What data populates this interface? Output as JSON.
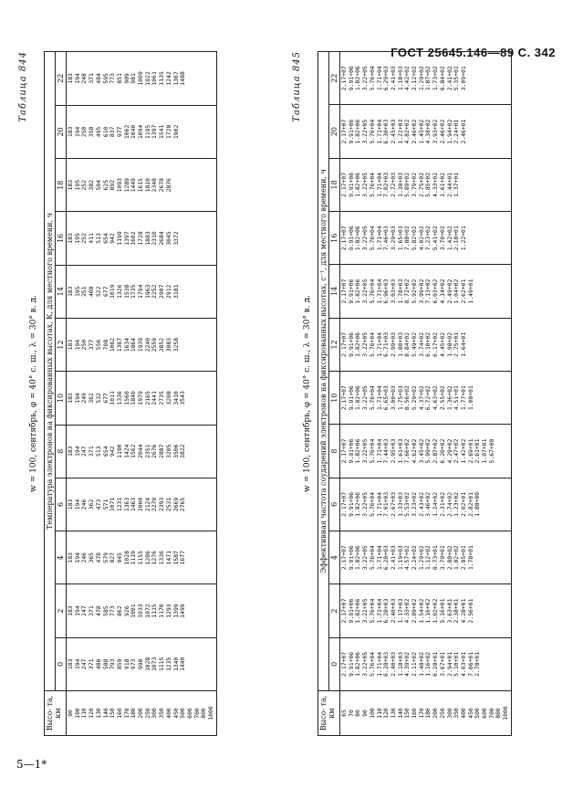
{
  "header": "ГОСТ 25645.146—89 С. 342",
  "footer": "5—1*",
  "altitudes": [
    "90",
    "100",
    "110",
    "120",
    "130",
    "140",
    "150",
    "160",
    "170",
    "180",
    "200",
    "250",
    "300",
    "350",
    "400",
    "450",
    "500",
    "600",
    "700",
    "800",
    "1000"
  ],
  "table844": {
    "number": "Таблица 844",
    "subtitle": "w = 100, сентябрь, φ = 40° с. ш., λ = 30° в. д.",
    "caption": "Температура электронов на фиксированных высотах, К, для местного времени, ч",
    "alt_header": "Высо- та, км",
    "times": [
      "0",
      "2",
      "4",
      "6",
      "8",
      "10",
      "12",
      "14",
      "16",
      "18",
      "20",
      "22"
    ],
    "columns": [
      [
        "183",
        "194",
        "247",
        "371",
        "480",
        "588",
        "793",
        "859",
        "918",
        "973",
        "998",
        "1028",
        "1073",
        "1115",
        "1235",
        "1340",
        "1440"
      ],
      [
        "183",
        "194",
        "247",
        "371",
        "478",
        "585",
        "773",
        "862",
        "926",
        "1001",
        "1033",
        "1072",
        "1115",
        "1170",
        "1293",
        "1399",
        "1499"
      ],
      [
        "183",
        "194",
        "246",
        "365",
        "478",
        "579",
        "827",
        "945",
        "1028",
        "1110",
        "1155",
        "1206",
        "1276",
        "1336",
        "1471",
        "1587",
        "1677"
      ],
      [
        "183",
        "194",
        "246",
        "362",
        "473",
        "571",
        "1071",
        "1231",
        "1363",
        "1463",
        "2000",
        "2124",
        "2270",
        "2393",
        "2531",
        "2669",
        "2765"
      ],
      [
        "183",
        "194",
        "247",
        "371",
        "513",
        "654",
        "942",
        "1190",
        "1424",
        "1562",
        "2044",
        "2351",
        "2676",
        "2887",
        "3205",
        "3506",
        "3822"
      ],
      [
        "183",
        "194",
        "249",
        "362",
        "532",
        "677",
        "1011",
        "1336",
        "1560",
        "1840",
        "1979",
        "2165",
        "2441",
        "2735",
        "3208",
        "3410",
        "3543"
      ],
      [
        "183",
        "194",
        "250",
        "377",
        "556",
        "708",
        "1062",
        "1367",
        "1634",
        "1864",
        "1939",
        "2240",
        "2559",
        "2852",
        "3083",
        "3258"
      ],
      [
        "183",
        "195",
        "251",
        "408",
        "522",
        "677",
        "1019",
        "1326",
        "1538",
        "1735",
        "1794",
        "1963",
        "2252",
        "2907",
        "2912",
        "3181"
      ],
      [
        "183",
        "195",
        "252",
        "411",
        "513",
        "654",
        "942",
        "1199",
        "1397",
        "1602",
        "1728",
        "1883",
        "2310",
        "2684",
        "3045",
        "3372"
      ],
      [
        "183",
        "195",
        "252",
        "382",
        "504",
        "625",
        "892",
        "1093",
        "1289",
        "1449",
        "1615",
        "1810",
        "2348",
        "2678",
        "2876"
      ],
      [
        "183",
        "194",
        "250",
        "358",
        "495",
        "610",
        "837",
        "977",
        "1062",
        "1040",
        "1094",
        "1195",
        "1397",
        "1541",
        "1728",
        "1902"
      ],
      [
        "183",
        "194",
        "248",
        "371",
        "484",
        "595",
        "773",
        "851",
        "909",
        "981",
        "1009",
        "1022",
        "1061",
        "1135",
        "1242",
        "1367",
        "1488"
      ]
    ]
  },
  "table845": {
    "number": "Таблица 845",
    "subtitle": "w = 100, сентябрь, φ = 40° с. ш., λ = 30° в. д.",
    "caption": "Эффективная частота соударений электронов на фиксированных высотах, с⁻¹, для местного времени, ч",
    "alt_header": "Высо- та, км",
    "times": [
      "0",
      "2",
      "4",
      "6",
      "8",
      "10",
      "12",
      "14",
      "16",
      "18",
      "20",
      "22"
    ],
    "altitudes": [
      "65",
      "70",
      "80",
      "90",
      "100",
      "110",
      "120",
      "130",
      "140",
      "150",
      "160",
      "170",
      "180",
      "200",
      "250",
      "300",
      "350",
      "400",
      "450",
      "500",
      "600",
      "700",
      "800",
      "1000"
    ],
    "columns": [
      [
        "2.17+07",
        "9.91+06",
        "1.82+06",
        "3.22+05",
        "5.76+04",
        "1.71+04",
        "6.28+03",
        "2.40+03",
        "1.18+03",
        "4.39+02",
        "2.11+02",
        "1.48+02",
        "1.16+02",
        "6.28+01",
        "3.67+01",
        "2.94+01",
        "5.10+01",
        "4.03+01",
        "7.06+01",
        "2.78+01"
      ],
      [
        "2.17+07",
        "9.91+06",
        "1.82+06",
        "3.22+05",
        "5.76+04",
        "1.71+04",
        "6.28+03",
        "2.40+03",
        "1.17+03",
        "4.33+02",
        "2.09+02",
        "1.54+02",
        "1.16+02",
        "1.02+02",
        "5.16+01",
        "3.63+01",
        "2.38+01",
        "4.28+01",
        "2.56+01"
      ],
      [
        "2.17+07",
        "9.91+06",
        "1.82+06",
        "3.22+05",
        "5.76+04",
        "1.71+04",
        "6.28+03",
        "2.41+03",
        "1.19+03",
        "4.57+02",
        "2.24+02",
        "1.29+02",
        "1.12+02",
        "8.73+01",
        "3.79+01",
        "2.88+02",
        "1.82+02",
        "2.85+01",
        "1.78+01"
      ],
      [
        "2.17+07",
        "9.91+06",
        "1.82+06",
        "3.22+05",
        "5.76+04",
        "1.71+04",
        "7.01+03",
        "2.67+03",
        "1.33+03",
        "5.53+02",
        "3.23+02",
        "2.43+02",
        "3.46+02",
        "1.24+02",
        "2.31+02",
        "2.74+02",
        "1.23+02",
        "2.02+01",
        "2.82+01",
        "1.88+00"
      ],
      [
        "2.17+07",
        "9.91+06",
        "1.82+06",
        "3.22+05",
        "5.76+04",
        "1.71+04",
        "7.44+03",
        "2.95+03",
        "1.61+03",
        "7.66+02",
        "4.62+02",
        "3.45+02",
        "5.99+02",
        "2.87+02",
        "6.20+02",
        "4.29+02",
        "2.47+02",
        "1.42+02",
        "2.69+01",
        "2.61+01",
        "1.07+01",
        "5.67+00"
      ],
      [
        "2.17+07",
        "9.91+06",
        "1.82+06",
        "3.22+05",
        "5.76+04",
        "1.71+04",
        "6.65+03",
        "3.00+03",
        "1.75+03",
        "8.56+02",
        "5.29+02",
        "4.37+02",
        "6.72+02",
        "4.63+02",
        "2.55+02",
        "1.36+02",
        "4.51+01",
        "1.77+01",
        "1.08+01"
      ],
      [
        "2.17+07",
        "9.91+06",
        "1.82+06",
        "3.22+05",
        "5.76+04",
        "1.71+04",
        "6.71+03",
        "2.99+03",
        "1.80+03",
        "8.84+02",
        "5.49+02",
        "3.74+02",
        "6.10+02",
        "6.17+02",
        "4.45+02",
        "1.98+02",
        "2.75+01",
        "1.64+01"
      ],
      [
        "2.17+07",
        "9.91+06",
        "1.82+06",
        "3.22+05",
        "5.76+04",
        "1.71+04",
        "6.96+03",
        "3.03+03",
        "1.78+03",
        "8.72+02",
        "5.92+02",
        "3.99+02",
        "7.13+02",
        "6.03+02",
        "4.14+02",
        "2.49+02",
        "1.04+02",
        "2.62+01",
        "1.49+01"
      ],
      [
        "2.17+07",
        "9.91+06",
        "1.82+06",
        "3.22+05",
        "5.76+04",
        "1.71+04",
        "7.46+03",
        "3.29+03",
        "1.65+03",
        "7.88+02",
        "5.82+02",
        "4.02+02",
        "7.23+02",
        "5.41+02",
        "3.70+02",
        "1.42+02",
        "2.18+01",
        "1.22+01"
      ],
      [
        "2.17+07",
        "9.91+06",
        "1.82+06",
        "3.22+05",
        "5.76+04",
        "1.71+04",
        "7.02+03",
        "2.72+03",
        "1.38+03",
        "5.89+02",
        "3.79+02",
        "2.75+02",
        "5.85+02",
        "4.33+02",
        "1.61+02",
        "2.44+01",
        "1.37+01"
      ],
      [
        "2.17+07",
        "9.91+06",
        "1.82+06",
        "3.22+05",
        "5.76+04",
        "1.71+04",
        "6.30+03",
        "2.45+03",
        "1.22+03",
        "4.82+02",
        "2.46+02",
        "1.45+02",
        "4.38+02",
        "3.93+02",
        "2.46+02",
        "1.94+02",
        "2.24+01",
        "2.46+01"
      ],
      [
        "2.17+07",
        "9.91+06",
        "1.82+06",
        "3.22+05",
        "5.76+04",
        "1.71+04",
        "6.29+03",
        "2.41+03",
        "1.18+03",
        "4.42+02",
        "2.12+02",
        "1.29+02",
        "1.87+02",
        "1.73+02",
        "6.84+02",
        "2.41+02",
        "5.35+01",
        "3.09+01"
      ]
    ]
  }
}
